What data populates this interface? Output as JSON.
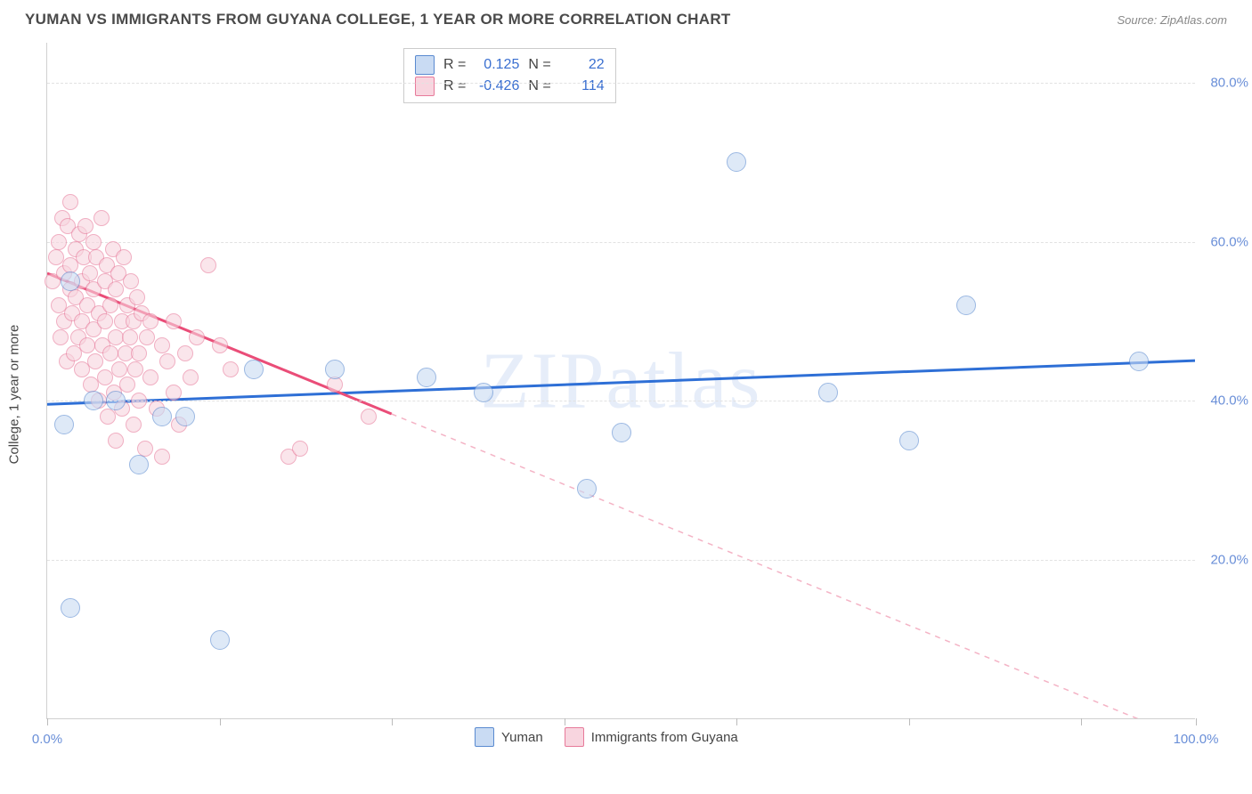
{
  "header": {
    "title": "YUMAN VS IMMIGRANTS FROM GUYANA COLLEGE, 1 YEAR OR MORE CORRELATION CHART",
    "source": "Source: ZipAtlas.com"
  },
  "watermark": {
    "zip": "ZIP",
    "atlas": "atlas"
  },
  "chart": {
    "type": "scatter",
    "ylabel": "College, 1 year or more",
    "background_color": "#ffffff",
    "grid_color": "#e2e2e2",
    "axis_color": "#d0d0d0",
    "tick_color": "#6a8fd8",
    "xlim": [
      0,
      100
    ],
    "ylim": [
      0,
      85
    ],
    "ytick_step": 20,
    "ytick_labels": [
      "20.0%",
      "40.0%",
      "60.0%",
      "80.0%"
    ],
    "ytick_values": [
      20,
      40,
      60,
      80
    ],
    "xtick_values": [
      0,
      15,
      30,
      45,
      60,
      75,
      90,
      100
    ],
    "xtick_labels_shown": {
      "0": "0.0%",
      "100": "100.0%"
    },
    "marker_radius": 9,
    "series": {
      "blue": {
        "name": "Yuman",
        "color_fill": "#c9dbf3",
        "color_stroke": "#5a8ad0",
        "r": 0.125,
        "n": 22,
        "trend": {
          "y_at_x0": 39.5,
          "y_at_x100": 45.0,
          "stroke": "#2e6fd6",
          "width": 3,
          "dash": "none"
        },
        "points": [
          [
            1.5,
            37
          ],
          [
            2,
            55
          ],
          [
            4,
            40
          ],
          [
            6,
            40
          ],
          [
            8,
            32
          ],
          [
            10,
            38
          ],
          [
            12,
            38
          ],
          [
            15,
            10
          ],
          [
            2,
            14
          ],
          [
            18,
            44
          ],
          [
            25,
            44
          ],
          [
            33,
            43
          ],
          [
            38,
            41
          ],
          [
            47,
            29
          ],
          [
            50,
            36
          ],
          [
            60,
            70
          ],
          [
            68,
            41
          ],
          [
            75,
            35
          ],
          [
            80,
            52
          ],
          [
            95,
            45
          ]
        ]
      },
      "pink": {
        "name": "Immigrants from Guyana",
        "color_fill": "#f8d5df",
        "color_stroke": "#e77a9a",
        "r": -0.426,
        "n": 114,
        "trend": {
          "y_at_x0": 56.0,
          "y_at_x100": -3.0,
          "stroke": "#ea4d78",
          "width": 3,
          "dash_after_x": 30,
          "dash_color": "#f4b3c5"
        },
        "points": [
          [
            0.5,
            55
          ],
          [
            0.8,
            58
          ],
          [
            1,
            52
          ],
          [
            1,
            60
          ],
          [
            1.2,
            48
          ],
          [
            1.3,
            63
          ],
          [
            1.5,
            56
          ],
          [
            1.5,
            50
          ],
          [
            1.7,
            45
          ],
          [
            1.8,
            62
          ],
          [
            2,
            54
          ],
          [
            2,
            57
          ],
          [
            2,
            65
          ],
          [
            2.2,
            51
          ],
          [
            2.3,
            46
          ],
          [
            2.5,
            59
          ],
          [
            2.5,
            53
          ],
          [
            2.7,
            48
          ],
          [
            2.8,
            61
          ],
          [
            3,
            55
          ],
          [
            3,
            50
          ],
          [
            3,
            44
          ],
          [
            3.2,
            58
          ],
          [
            3.3,
            62
          ],
          [
            3.5,
            52
          ],
          [
            3.5,
            47
          ],
          [
            3.7,
            56
          ],
          [
            3.8,
            42
          ],
          [
            4,
            60
          ],
          [
            4,
            49
          ],
          [
            4,
            54
          ],
          [
            4.2,
            45
          ],
          [
            4.3,
            58
          ],
          [
            4.5,
            51
          ],
          [
            4.5,
            40
          ],
          [
            4.7,
            63
          ],
          [
            4.8,
            47
          ],
          [
            5,
            55
          ],
          [
            5,
            50
          ],
          [
            5,
            43
          ],
          [
            5.2,
            57
          ],
          [
            5.3,
            38
          ],
          [
            5.5,
            52
          ],
          [
            5.5,
            46
          ],
          [
            5.7,
            59
          ],
          [
            5.8,
            41
          ],
          [
            6,
            54
          ],
          [
            6,
            48
          ],
          [
            6,
            35
          ],
          [
            6.2,
            56
          ],
          [
            6.3,
            44
          ],
          [
            6.5,
            50
          ],
          [
            6.5,
            39
          ],
          [
            6.7,
            58
          ],
          [
            6.8,
            46
          ],
          [
            7,
            52
          ],
          [
            7,
            42
          ],
          [
            7.2,
            48
          ],
          [
            7.3,
            55
          ],
          [
            7.5,
            37
          ],
          [
            7.5,
            50
          ],
          [
            7.7,
            44
          ],
          [
            7.8,
            53
          ],
          [
            8,
            46
          ],
          [
            8,
            40
          ],
          [
            8.2,
            51
          ],
          [
            8.5,
            34
          ],
          [
            8.7,
            48
          ],
          [
            9,
            43
          ],
          [
            9,
            50
          ],
          [
            9.5,
            39
          ],
          [
            10,
            47
          ],
          [
            10,
            33
          ],
          [
            10.5,
            45
          ],
          [
            11,
            41
          ],
          [
            11,
            50
          ],
          [
            11.5,
            37
          ],
          [
            12,
            46
          ],
          [
            12.5,
            43
          ],
          [
            13,
            48
          ],
          [
            14,
            57
          ],
          [
            15,
            47
          ],
          [
            16,
            44
          ],
          [
            21,
            33
          ],
          [
            22,
            34
          ],
          [
            25,
            42
          ],
          [
            28,
            38
          ]
        ]
      }
    }
  },
  "legend_top": {
    "r_label": "R =",
    "n_label": "N =",
    "rows": [
      {
        "swatch": "blue",
        "r": "0.125",
        "n": "22"
      },
      {
        "swatch": "pink",
        "r": "-0.426",
        "n": "114"
      }
    ]
  },
  "legend_bottom": {
    "items": [
      {
        "swatch": "blue",
        "label": "Yuman"
      },
      {
        "swatch": "pink",
        "label": "Immigrants from Guyana"
      }
    ]
  }
}
